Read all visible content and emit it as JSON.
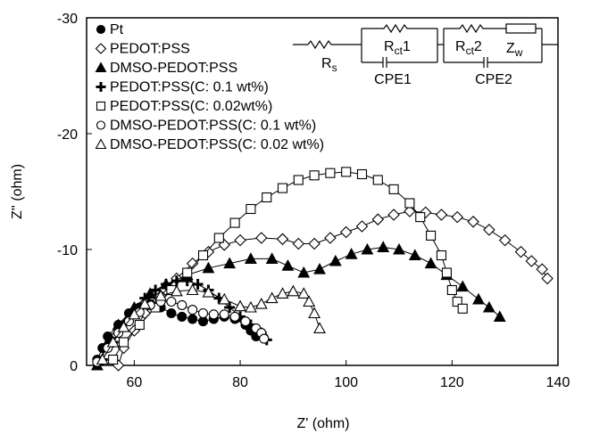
{
  "chart_data": {
    "type": "scatter",
    "xlabel": "Z' (ohm)",
    "ylabel": "Z'' (ohm)",
    "xlim": [
      51,
      140
    ],
    "xticks": [
      60,
      80,
      100,
      120,
      140
    ],
    "ylim": [
      0,
      -30
    ],
    "yticks": [
      0,
      -10,
      -20,
      -30
    ],
    "legend": "upper left",
    "circuit": {
      "rs": {
        "base": "R",
        "sub": "s"
      },
      "rct1": {
        "base": "R",
        "sub": "ct",
        "suffix": "1"
      },
      "cpe1": "CPE1",
      "rct2": {
        "base": "R",
        "sub": "ct",
        "suffix": "2"
      },
      "zw": {
        "base": "Z",
        "sub": "w"
      },
      "cpe2": "CPE2"
    },
    "series": [
      {
        "name": "Pt",
        "marker": "filled-circle",
        "color": "#000000",
        "x": [
          53,
          54,
          55,
          57,
          59,
          61,
          63,
          65,
          67,
          69,
          71,
          73,
          75,
          77,
          79,
          81,
          82,
          83
        ],
        "values": [
          -0.5,
          -1.5,
          -2.5,
          -3.5,
          -4.5,
          -5,
          -5.3,
          -5,
          -4.5,
          -4.2,
          -4,
          -3.8,
          -4,
          -4.2,
          -4,
          -3.5,
          -3,
          -2.5
        ]
      },
      {
        "name": "PEDOT:PSS",
        "marker": "open-diamond",
        "color": "#000000",
        "x": [
          57,
          58,
          60,
          62,
          65,
          68,
          71,
          74,
          77,
          80,
          84,
          88,
          91,
          94,
          97,
          100,
          103,
          106,
          109,
          112,
          115,
          118,
          121,
          124,
          127,
          130,
          133,
          135,
          137,
          138
        ],
        "values": [
          0,
          -1.5,
          -3,
          -4.5,
          -6,
          -7.5,
          -8.8,
          -9.8,
          -10.4,
          -10.8,
          -11,
          -10.9,
          -10.5,
          -10.5,
          -11,
          -11.5,
          -12,
          -12.6,
          -13,
          -13.3,
          -13.2,
          -13,
          -12.8,
          -12.4,
          -11.7,
          -10.8,
          -9.8,
          -9,
          -8.3,
          -7.5
        ]
      },
      {
        "name": "DMSO-PEDOT:PSS",
        "marker": "filled-triangle",
        "color": "#000000",
        "x": [
          53,
          55,
          57,
          60,
          63,
          66,
          70,
          74,
          78,
          82,
          86,
          89,
          92,
          95,
          98,
          101,
          104,
          107,
          110,
          113,
          116,
          119,
          122,
          125,
          127,
          129
        ],
        "values": [
          0,
          -2,
          -3.5,
          -5,
          -6.2,
          -7,
          -7.8,
          -8.4,
          -8.8,
          -9.2,
          -9.2,
          -8.6,
          -8,
          -8.3,
          -9,
          -9.6,
          -10,
          -10.2,
          -10,
          -9.5,
          -8.8,
          -7.8,
          -6.8,
          -5.7,
          -5,
          -4.2
        ]
      },
      {
        "name": "PEDOT:PSS(C: 0.1 wt%)",
        "marker": "plus",
        "color": "#000000",
        "x": [
          54,
          56,
          58,
          60,
          62,
          64,
          66,
          68,
          70,
          72,
          74,
          76,
          78,
          80,
          82,
          84,
          85
        ],
        "values": [
          -0.5,
          -2,
          -3.5,
          -4.8,
          -5.8,
          -6.5,
          -7,
          -7.3,
          -7.3,
          -7,
          -6.5,
          -5.8,
          -5,
          -4.2,
          -3.5,
          -2.8,
          -2.2
        ]
      },
      {
        "name": "PEDOT:PSS(C: 0.02wt%)",
        "marker": "open-square",
        "color": "#000000",
        "x": [
          56,
          58,
          61,
          64,
          67,
          70,
          73,
          76,
          79,
          82,
          85,
          88,
          91,
          94,
          97,
          100,
          103,
          106,
          109,
          112,
          114,
          116,
          118,
          119,
          120,
          121,
          122
        ],
        "values": [
          -0.5,
          -2,
          -3.5,
          -5,
          -6.5,
          -8,
          -9.5,
          -11,
          -12.3,
          -13.5,
          -14.5,
          -15.3,
          -16,
          -16.4,
          -16.6,
          -16.7,
          -16.5,
          -16,
          -15.2,
          -14,
          -12.8,
          -11.2,
          -9.5,
          -8,
          -6.5,
          -5.5,
          -4.9
        ]
      },
      {
        "name": "DMSO-PEDOT:PSS(C: 0.1 wt%)",
        "marker": "open-circle",
        "color": "#000000",
        "x": [
          53,
          55,
          57,
          59,
          61,
          63,
          65,
          67,
          69,
          71,
          73,
          75,
          77,
          79,
          81,
          83,
          84,
          84.5
        ],
        "values": [
          -0.3,
          -1.5,
          -2.8,
          -3.8,
          -4.6,
          -5.2,
          -5.5,
          -5.5,
          -5.2,
          -4.8,
          -4.5,
          -4.4,
          -4.4,
          -4.2,
          -3.8,
          -3.2,
          -2.8,
          -2.3
        ]
      },
      {
        "name": "DMSO-PEDOT:PSS(C: 0.02 wt%)",
        "marker": "open-triangle",
        "color": "#000000",
        "x": [
          54,
          56,
          58,
          60,
          62,
          65,
          68,
          71,
          74,
          77,
          80,
          82,
          84,
          86,
          88,
          90,
          92,
          93,
          94,
          95
        ],
        "values": [
          -0.5,
          -2,
          -3.3,
          -4.4,
          -5.3,
          -6,
          -6.4,
          -6.5,
          -6.3,
          -5.7,
          -5.1,
          -5,
          -5.3,
          -5.8,
          -6.2,
          -6.4,
          -6.2,
          -5.5,
          -4.5,
          -3.2
        ]
      }
    ]
  }
}
